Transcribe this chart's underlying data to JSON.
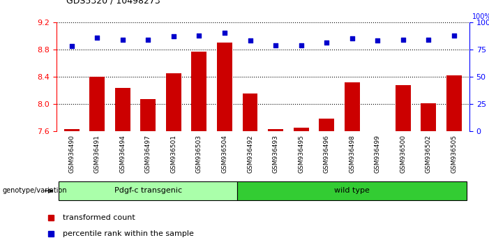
{
  "title": "GDS5320 / 10498273",
  "samples": [
    "GSM936490",
    "GSM936491",
    "GSM936494",
    "GSM936497",
    "GSM936501",
    "GSM936503",
    "GSM936504",
    "GSM936492",
    "GSM936493",
    "GSM936495",
    "GSM936496",
    "GSM936498",
    "GSM936499",
    "GSM936500",
    "GSM936502",
    "GSM936505"
  ],
  "bar_values": [
    7.63,
    8.4,
    8.23,
    8.07,
    8.45,
    8.77,
    8.9,
    8.15,
    7.63,
    7.65,
    7.78,
    8.32,
    7.6,
    8.27,
    8.01,
    8.42
  ],
  "dot_values": [
    78,
    86,
    84,
    84,
    87,
    88,
    90,
    83,
    79,
    79,
    81,
    85,
    83,
    84,
    84,
    88
  ],
  "groups": [
    {
      "label": "Pdgf-c transgenic",
      "start": 0,
      "end": 7
    },
    {
      "label": "wild type",
      "start": 7,
      "end": 16
    }
  ],
  "group_colors": [
    "#aaffaa",
    "#33cc33"
  ],
  "ylim_left": [
    7.6,
    9.2
  ],
  "ylim_right": [
    0,
    100
  ],
  "yticks_left": [
    7.6,
    8.0,
    8.4,
    8.8,
    9.2
  ],
  "yticks_right": [
    0,
    25,
    50,
    75,
    100
  ],
  "bar_color": "#cc0000",
  "dot_color": "#0000cc",
  "bar_width": 0.6,
  "background_color": "#ffffff",
  "tick_bg_color": "#dddddd",
  "legend_bar_label": "transformed count",
  "legend_dot_label": "percentile rank within the sample",
  "genotype_label": "genotype/variation"
}
